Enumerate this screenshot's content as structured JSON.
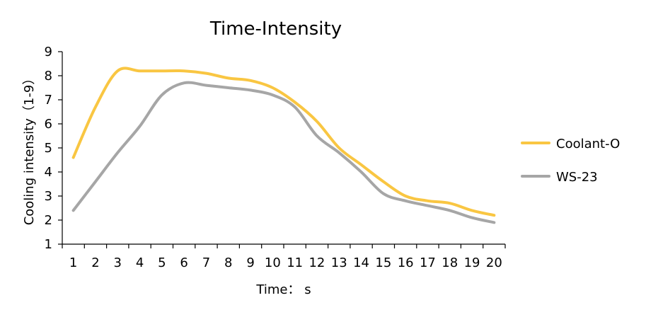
{
  "chart_data": {
    "type": "line",
    "title": "Time-Intensity",
    "xlabel": "Time： s",
    "ylabel": "Cooling intensity（1-9）",
    "x": [
      1,
      2,
      3,
      4,
      5,
      6,
      7,
      8,
      9,
      10,
      11,
      12,
      13,
      14,
      15,
      16,
      17,
      18,
      19,
      20
    ],
    "xlim": [
      0.5,
      20.5
    ],
    "ylim": [
      1,
      9
    ],
    "yticks": [
      1,
      2,
      3,
      4,
      5,
      6,
      7,
      8,
      9
    ],
    "grid": false,
    "legend_position": "right",
    "series": [
      {
        "name": "Coolant-O",
        "color": "#F9C642",
        "values": [
          4.6,
          6.7,
          8.2,
          8.2,
          8.2,
          8.2,
          8.1,
          7.9,
          7.8,
          7.5,
          6.9,
          6.1,
          5.0,
          4.3,
          3.6,
          3.0,
          2.8,
          2.7,
          2.4,
          2.2
        ]
      },
      {
        "name": "WS-23",
        "color": "#A6A6A6",
        "values": [
          2.4,
          3.6,
          4.8,
          5.9,
          7.2,
          7.7,
          7.6,
          7.5,
          7.4,
          7.2,
          6.7,
          5.5,
          4.8,
          4.0,
          3.1,
          2.8,
          2.6,
          2.4,
          2.1,
          1.9
        ]
      }
    ]
  }
}
